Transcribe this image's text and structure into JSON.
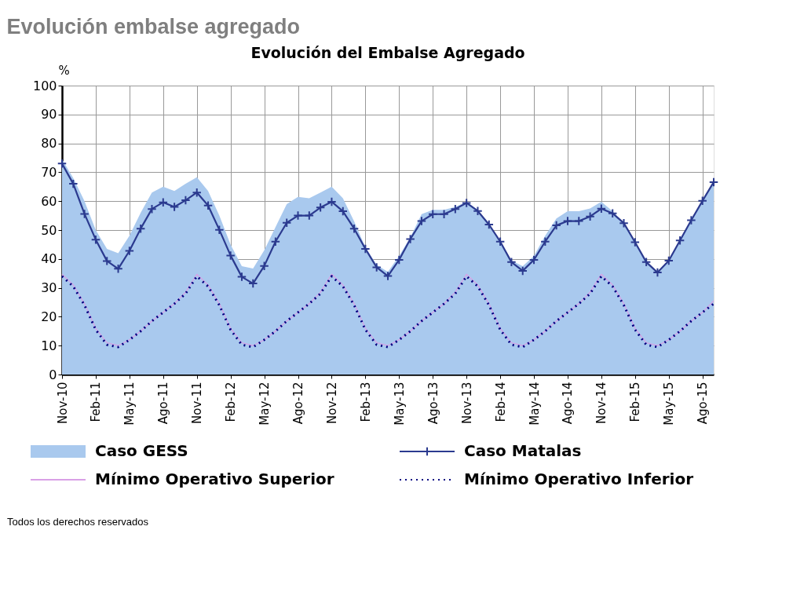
{
  "chart_data": {
    "type": "line",
    "title": "Evolución embalse agregado",
    "subtitle": "Evolución del Embalse Agregado",
    "ylabel": "%",
    "categories": [
      "Nov-10",
      null,
      null,
      "Feb-11",
      null,
      null,
      "May-11",
      null,
      null,
      "Ago-11",
      null,
      null,
      "Nov-11",
      null,
      null,
      "Feb-12",
      null,
      null,
      "May-12",
      null,
      null,
      "Ago-12",
      null,
      null,
      "Nov-12",
      null,
      null,
      "Feb-13",
      null,
      null,
      "May-13",
      null,
      null,
      "Ago-13",
      null,
      null,
      "Nov-13",
      null,
      null,
      "Feb-14",
      null,
      null,
      "May-14",
      null,
      null,
      "Ago-14",
      null,
      null,
      "Nov-14",
      null,
      null,
      "Feb-15",
      null,
      null,
      "May-15",
      null,
      null,
      "Ago-15",
      null
    ],
    "series": [
      {
        "name": "Caso GESS",
        "type": "area",
        "color": "#a9c9ee",
        "values": [
          74.5,
          68,
          60,
          50,
          43.5,
          42,
          48,
          56,
          63,
          65,
          63.5,
          66,
          68.3,
          63.5,
          55,
          45,
          37.5,
          36.7,
          43,
          51,
          59,
          61.5,
          61,
          63,
          65,
          61,
          53,
          44,
          38,
          35.5,
          41,
          47.5,
          55.5,
          57,
          57,
          58,
          59.8,
          57,
          52,
          46,
          39.5,
          37.5,
          41,
          48,
          54,
          56.5,
          56.5,
          57.5,
          59.8,
          56.5,
          52.4,
          45.8,
          38.9,
          35.3,
          39.4,
          46.4,
          53.4,
          60.1,
          66.6
        ]
      },
      {
        "name": "Caso Matalas",
        "type": "line",
        "color": "#2b3a8f",
        "line_style": "solid",
        "marker": "cross",
        "values": [
          73,
          66,
          55.6,
          46.7,
          39.3,
          36.6,
          42.8,
          50.5,
          57.3,
          59.6,
          58,
          60.3,
          63,
          58.5,
          50.1,
          41.2,
          33.8,
          31.5,
          37.6,
          46,
          52.5,
          55,
          55,
          57.8,
          59.8,
          56.5,
          50.5,
          43.5,
          37.1,
          34.1,
          39.7,
          46.9,
          53.1,
          55.5,
          55.5,
          57.3,
          59.4,
          56.6,
          51.9,
          46,
          38.9,
          35.9,
          39.7,
          46,
          51.6,
          53.1,
          53.1,
          54.7,
          57.4,
          55.8,
          52.4,
          45.8,
          38.9,
          35.3,
          39.4,
          46.4,
          53.4,
          60.1,
          66.6
        ]
      },
      {
        "name": "Mínimo Operativo Superior",
        "type": "line",
        "color": "#d9a0e6",
        "line_style": "solid",
        "values": [
          34.7,
          31,
          24.5,
          16,
          11,
          10,
          12,
          15,
          18.5,
          21.5,
          24.5,
          28.5,
          34.7,
          31,
          24.5,
          16,
          11,
          10,
          12,
          15,
          18.5,
          21.5,
          24.5,
          28.5,
          34.7,
          31,
          24.5,
          16,
          11,
          10,
          12,
          15,
          18.5,
          21.5,
          24.5,
          28.5,
          34.7,
          31,
          24.5,
          16,
          11,
          10,
          12,
          15,
          18.5,
          21.5,
          24.5,
          28.5,
          34.7,
          31,
          24.5,
          16,
          11,
          10,
          12,
          15,
          18.5,
          21.5,
          25.5
        ]
      },
      {
        "name": "Mínimo Operativo Inferior",
        "type": "line",
        "color": "#000080",
        "line_style": "dotted",
        "values": [
          34,
          30.5,
          24,
          15.5,
          10.3,
          9.5,
          12,
          15,
          18.5,
          21.5,
          24.5,
          28,
          34,
          30.5,
          24,
          15.5,
          10.3,
          9.5,
          12,
          15,
          18.5,
          21.5,
          24.5,
          28,
          34,
          30.5,
          24,
          15.5,
          10.3,
          9.5,
          12,
          15,
          18.5,
          21.5,
          24.5,
          28,
          34,
          30.5,
          24,
          15.5,
          10.3,
          9.5,
          12,
          15,
          18.5,
          21.5,
          24.5,
          28,
          34,
          30.5,
          24,
          15.5,
          10.3,
          9.5,
          12,
          15,
          18.5,
          21.5,
          24.5
        ]
      }
    ],
    "ylim": [
      0,
      100
    ],
    "yticks": [
      0,
      10,
      20,
      30,
      40,
      50,
      60,
      70,
      80,
      90,
      100
    ],
    "grid": true,
    "legend": "bottom",
    "annotations": [
      "Todos los derechos reservados"
    ]
  }
}
